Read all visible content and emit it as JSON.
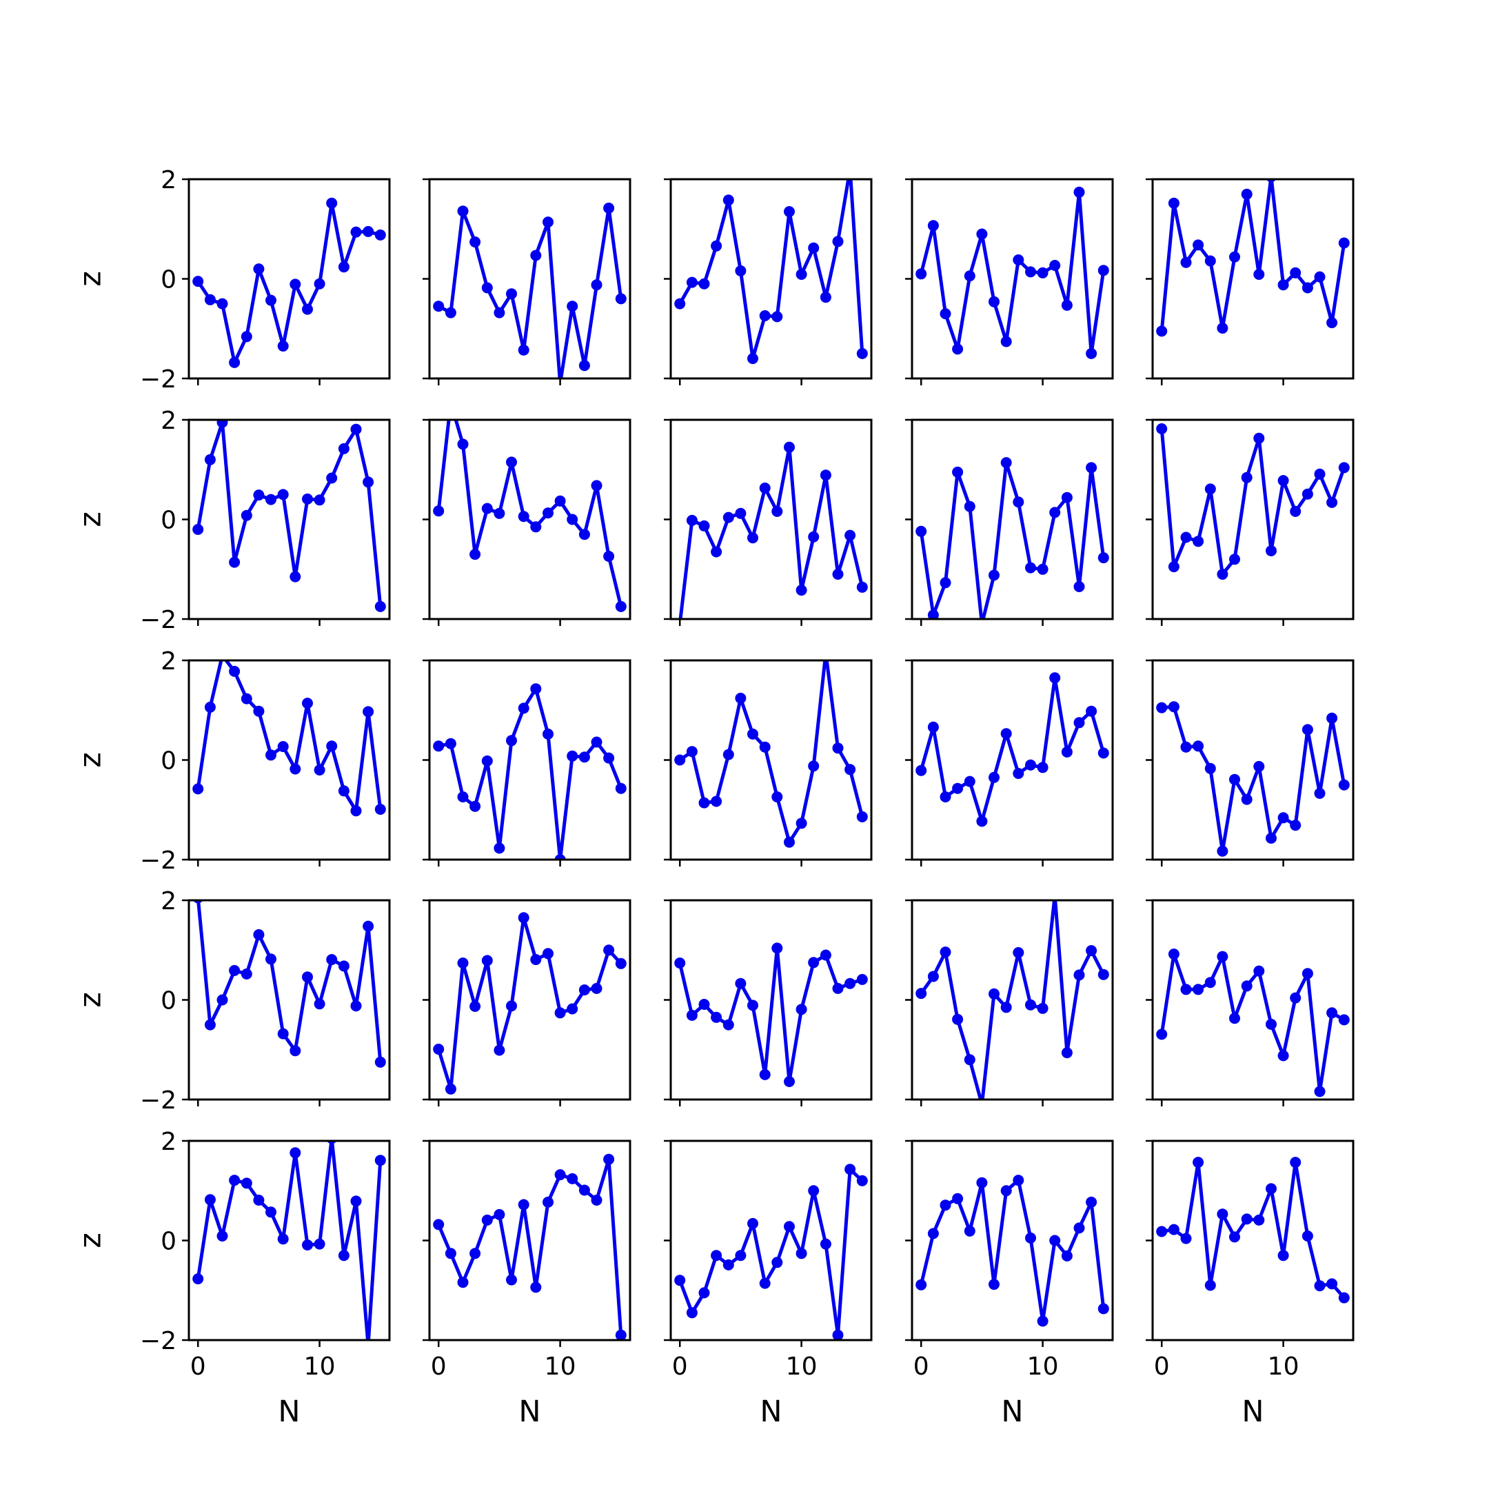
{
  "chart_data": {
    "type": "line",
    "layout": "5x5 grid",
    "color": "#0000ee",
    "marker": "circle",
    "xlabel": "N",
    "ylabel": "z",
    "xlim": [
      -0.75,
      15.75
    ],
    "ylim": [
      -2,
      2
    ],
    "xticks": [
      0,
      10
    ],
    "xtick_labels": [
      "0",
      "10"
    ],
    "yticks": [
      -2,
      0,
      2
    ],
    "ytick_labels": [
      "−2",
      "0",
      "2"
    ],
    "x": [
      0,
      1,
      2,
      3,
      4,
      5,
      6,
      7,
      8,
      9,
      10,
      11,
      12,
      13,
      14,
      15
    ],
    "panels": [
      [
        -0.05,
        -0.42,
        -0.5,
        -1.68,
        -1.16,
        0.2,
        -0.43,
        -1.35,
        -0.11,
        -0.61,
        -0.1,
        1.52,
        0.24,
        0.94,
        0.95,
        0.88
      ],
      [
        -0.55,
        -0.68,
        1.36,
        0.74,
        -0.18,
        -0.68,
        -0.3,
        -1.43,
        0.47,
        1.14,
        -2.1,
        -0.55,
        -1.74,
        -0.12,
        1.42,
        -0.4
      ],
      [
        -0.5,
        -0.07,
        -0.1,
        0.66,
        1.58,
        0.16,
        -1.6,
        -0.74,
        -0.76,
        1.35,
        0.09,
        0.62,
        -0.37,
        0.75,
        2.2,
        -1.5
      ],
      [
        0.1,
        1.07,
        -0.7,
        -1.41,
        0.06,
        0.9,
        -0.46,
        -1.26,
        0.38,
        0.14,
        0.12,
        0.27,
        -0.53,
        1.74,
        -1.5,
        0.17
      ],
      [
        -1.05,
        1.52,
        0.33,
        0.68,
        0.36,
        -0.99,
        0.44,
        1.7,
        0.09,
        2.05,
        -0.12,
        0.12,
        -0.18,
        0.04,
        -0.88,
        0.72
      ],
      [
        -0.2,
        1.2,
        1.95,
        -0.86,
        0.08,
        0.49,
        0.4,
        0.5,
        -1.15,
        0.41,
        0.39,
        0.83,
        1.42,
        1.81,
        0.75,
        -1.75
      ],
      [
        0.17,
        2.35,
        1.51,
        -0.7,
        0.22,
        0.12,
        1.15,
        0.06,
        -0.15,
        0.13,
        0.37,
        0.0,
        -0.3,
        0.68,
        -0.74,
        -1.75
      ],
      [
        -2.1,
        -0.02,
        -0.13,
        -0.65,
        0.04,
        0.12,
        -0.37,
        0.63,
        0.16,
        1.45,
        -1.42,
        -0.35,
        0.89,
        -1.1,
        -0.32,
        -1.36
      ],
      [
        -0.24,
        -1.92,
        -1.27,
        0.95,
        0.26,
        -2.1,
        -1.12,
        1.14,
        0.35,
        -0.97,
        -1.0,
        0.14,
        0.44,
        -1.35,
        1.04,
        -0.77
      ],
      [
        1.82,
        -0.95,
        -0.36,
        -0.44,
        0.61,
        -1.1,
        -0.8,
        0.84,
        1.63,
        -0.63,
        0.78,
        0.16,
        0.51,
        0.91,
        0.34,
        1.04
      ],
      [
        -0.58,
        1.06,
        2.1,
        1.78,
        1.23,
        0.98,
        0.1,
        0.27,
        -0.18,
        1.14,
        -0.2,
        0.28,
        -0.62,
        -1.02,
        0.97,
        -0.99
      ],
      [
        0.28,
        0.33,
        -0.74,
        -0.93,
        -0.02,
        -1.77,
        0.39,
        1.04,
        1.43,
        0.52,
        -2.0,
        0.08,
        0.06,
        0.36,
        0.04,
        -0.57
      ],
      [
        0.0,
        0.17,
        -0.86,
        -0.83,
        0.11,
        1.24,
        0.52,
        0.26,
        -0.74,
        -1.65,
        -1.27,
        -0.12,
        2.15,
        0.24,
        -0.19,
        -1.14
      ],
      [
        -0.21,
        0.66,
        -0.74,
        -0.57,
        -0.43,
        -1.23,
        -0.35,
        0.53,
        -0.27,
        -0.1,
        -0.15,
        1.65,
        0.16,
        0.75,
        0.98,
        0.14
      ],
      [
        1.05,
        1.07,
        0.26,
        0.28,
        -0.17,
        -1.83,
        -0.39,
        -0.79,
        -0.13,
        -1.57,
        -1.16,
        -1.31,
        0.61,
        -0.67,
        0.84,
        -0.5
      ],
      [
        2.05,
        -0.5,
        0.0,
        0.59,
        0.52,
        1.31,
        0.82,
        -0.68,
        -1.02,
        0.46,
        -0.08,
        0.81,
        0.68,
        -0.12,
        1.48,
        -1.25
      ],
      [
        -0.99,
        -1.79,
        0.74,
        -0.13,
        0.79,
        -1.01,
        -0.12,
        1.65,
        0.81,
        0.93,
        -0.26,
        -0.18,
        0.2,
        0.23,
        1.0,
        0.73
      ],
      [
        0.74,
        -0.31,
        -0.09,
        -0.35,
        -0.5,
        0.33,
        -0.11,
        -1.5,
        1.04,
        -1.64,
        -0.19,
        0.75,
        0.9,
        0.23,
        0.33,
        0.41
      ],
      [
        0.13,
        0.47,
        0.96,
        -0.39,
        -1.2,
        -2.1,
        0.12,
        -0.15,
        0.95,
        -0.1,
        -0.17,
        2.1,
        -1.06,
        0.5,
        0.99,
        0.51
      ],
      [
        -0.69,
        0.92,
        0.21,
        0.21,
        0.35,
        0.87,
        -0.37,
        0.28,
        0.58,
        -0.49,
        -1.12,
        0.04,
        0.53,
        -1.84,
        -0.26,
        -0.4
      ],
      [
        -0.77,
        0.82,
        0.09,
        1.21,
        1.15,
        0.81,
        0.57,
        0.03,
        1.76,
        -0.09,
        -0.07,
        2.05,
        -0.3,
        0.79,
        -2.1,
        1.61
      ],
      [
        0.32,
        -0.26,
        -0.84,
        -0.26,
        0.41,
        0.52,
        -0.79,
        0.72,
        -0.94,
        0.77,
        1.32,
        1.24,
        1.01,
        0.81,
        1.63,
        -1.9
      ],
      [
        -0.8,
        -1.45,
        -1.05,
        -0.3,
        -0.49,
        -0.3,
        0.34,
        -0.86,
        -0.44,
        0.28,
        -0.26,
        1.0,
        -0.07,
        -1.9,
        1.43,
        1.2
      ],
      [
        -0.89,
        0.14,
        0.71,
        0.84,
        0.19,
        1.16,
        -0.88,
        1.0,
        1.21,
        0.05,
        -1.62,
        0.0,
        -0.31,
        0.25,
        0.77,
        -1.37
      ],
      [
        0.18,
        0.22,
        0.04,
        1.57,
        -0.9,
        0.53,
        0.07,
        0.43,
        0.41,
        1.04,
        -0.3,
        1.57,
        0.09,
        -0.91,
        -0.87,
        -1.15
      ]
    ]
  }
}
